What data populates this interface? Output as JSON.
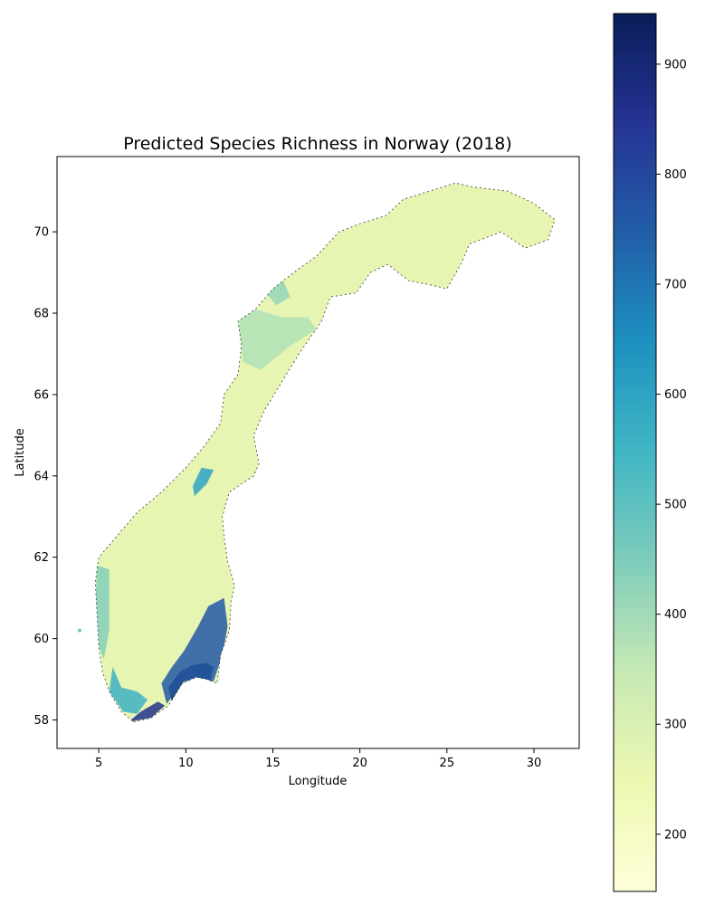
{
  "chart_data": {
    "type": "map",
    "title": "Predicted Species Richness in Norway (2018)",
    "xlabel": "Longitude",
    "ylabel": "Latitude",
    "xlim": [
      2.6,
      32.6
    ],
    "ylim": [
      57.3,
      71.85
    ],
    "x_ticks": [
      5,
      10,
      15,
      20,
      25,
      30
    ],
    "y_ticks": [
      58,
      60,
      62,
      64,
      66,
      68,
      70
    ],
    "colorbar": {
      "colormap": "YlGnBu",
      "range": [
        148,
        946
      ],
      "ticks": [
        200,
        300,
        400,
        500,
        600,
        700,
        800,
        900
      ],
      "stops": [
        "#ffffd9",
        "#edf8b1",
        "#c7e9b4",
        "#7fcdbb",
        "#41b6c4",
        "#1d91c0",
        "#225ea8",
        "#253494",
        "#081d58"
      ]
    },
    "outline": [
      [
        7.0,
        57.95
      ],
      [
        8.0,
        58.05
      ],
      [
        9.0,
        58.35
      ],
      [
        9.8,
        58.9
      ],
      [
        10.6,
        59.05
      ],
      [
        11.2,
        59.0
      ],
      [
        11.8,
        58.9
      ],
      [
        12.0,
        59.6
      ],
      [
        12.5,
        60.2
      ],
      [
        12.6,
        60.9
      ],
      [
        12.8,
        61.3
      ],
      [
        12.4,
        61.9
      ],
      [
        12.2,
        62.5
      ],
      [
        12.1,
        63.0
      ],
      [
        12.5,
        63.6
      ],
      [
        13.9,
        64.0
      ],
      [
        14.2,
        64.3
      ],
      [
        13.9,
        65.0
      ],
      [
        14.5,
        65.6
      ],
      [
        15.5,
        66.3
      ],
      [
        16.5,
        67.0
      ],
      [
        17.8,
        67.8
      ],
      [
        18.3,
        68.4
      ],
      [
        19.8,
        68.5
      ],
      [
        20.6,
        69.0
      ],
      [
        21.6,
        69.2
      ],
      [
        22.8,
        68.8
      ],
      [
        24.0,
        68.7
      ],
      [
        25.0,
        68.6
      ],
      [
        25.8,
        69.2
      ],
      [
        26.3,
        69.7
      ],
      [
        28.1,
        70.0
      ],
      [
        29.5,
        69.6
      ],
      [
        30.8,
        69.8
      ],
      [
        31.2,
        70.3
      ],
      [
        30.0,
        70.7
      ],
      [
        28.5,
        71.0
      ],
      [
        26.5,
        71.1
      ],
      [
        25.5,
        71.2
      ],
      [
        24.0,
        71.0
      ],
      [
        22.5,
        70.8
      ],
      [
        21.5,
        70.4
      ],
      [
        20.0,
        70.2
      ],
      [
        18.8,
        70.0
      ],
      [
        17.5,
        69.4
      ],
      [
        16.2,
        69.0
      ],
      [
        15.0,
        68.6
      ],
      [
        14.0,
        68.1
      ],
      [
        13.0,
        67.8
      ],
      [
        13.2,
        67.2
      ],
      [
        13.0,
        66.5
      ],
      [
        12.2,
        66.0
      ],
      [
        12.0,
        65.3
      ],
      [
        11.0,
        64.7
      ],
      [
        10.0,
        64.2
      ],
      [
        8.6,
        63.6
      ],
      [
        7.2,
        63.1
      ],
      [
        6.2,
        62.6
      ],
      [
        5.0,
        62.0
      ],
      [
        4.8,
        61.4
      ],
      [
        4.9,
        60.6
      ],
      [
        5.0,
        59.8
      ],
      [
        5.2,
        59.2
      ],
      [
        5.6,
        58.7
      ],
      [
        6.3,
        58.2
      ]
    ],
    "richness_bands": [
      {
        "value": 946,
        "path": [
          [
            9.2,
            58.45
          ],
          [
            9.9,
            58.95
          ],
          [
            10.6,
            59.05
          ],
          [
            11.4,
            58.95
          ],
          [
            11.6,
            59.3
          ],
          [
            11.2,
            59.4
          ],
          [
            10.4,
            59.35
          ],
          [
            9.7,
            59.2
          ],
          [
            9.0,
            58.8
          ]
        ]
      },
      {
        "value": 760,
        "path": [
          [
            8.9,
            58.4
          ],
          [
            9.9,
            58.95
          ],
          [
            11.6,
            58.95
          ],
          [
            12.1,
            59.6
          ],
          [
            12.4,
            60.3
          ],
          [
            12.2,
            61.0
          ],
          [
            11.3,
            60.8
          ],
          [
            10.7,
            60.3
          ],
          [
            9.9,
            59.7
          ],
          [
            9.2,
            59.3
          ],
          [
            8.6,
            58.9
          ]
        ]
      },
      {
        "value": 860,
        "path": [
          [
            6.7,
            57.95
          ],
          [
            8.0,
            58.05
          ],
          [
            8.8,
            58.35
          ],
          [
            8.4,
            58.45
          ],
          [
            7.4,
            58.2
          ]
        ]
      },
      {
        "value": 560,
        "path": [
          [
            5.6,
            58.7
          ],
          [
            6.4,
            58.2
          ],
          [
            7.2,
            58.15
          ],
          [
            7.8,
            58.5
          ],
          [
            7.2,
            58.7
          ],
          [
            6.3,
            58.8
          ],
          [
            5.8,
            59.3
          ]
        ]
      },
      {
        "value": 600,
        "path": [
          [
            10.9,
            64.2
          ],
          [
            11.6,
            64.15
          ],
          [
            11.2,
            63.8
          ],
          [
            10.5,
            63.5
          ],
          [
            10.4,
            63.75
          ]
        ]
      },
      {
        "value": 440,
        "path": [
          [
            4.9,
            61.8
          ],
          [
            5.6,
            61.7
          ],
          [
            5.6,
            60.2
          ],
          [
            5.3,
            59.5
          ],
          [
            5.0,
            59.8
          ],
          [
            4.8,
            60.8
          ]
        ]
      },
      {
        "value": 420,
        "path": [
          [
            14.6,
            68.9
          ],
          [
            15.5,
            68.9
          ],
          [
            16.0,
            68.4
          ],
          [
            15.2,
            68.2
          ],
          [
            14.6,
            68.5
          ]
        ]
      },
      {
        "value": 380,
        "path": [
          [
            13.0,
            67.8
          ],
          [
            14.0,
            68.1
          ],
          [
            15.5,
            67.9
          ],
          [
            17.0,
            67.9
          ],
          [
            17.5,
            67.6
          ],
          [
            16.0,
            67.2
          ],
          [
            14.3,
            66.6
          ],
          [
            13.3,
            66.8
          ]
        ]
      }
    ],
    "outlier_points": [
      {
        "lon": 3.9,
        "lat": 60.2,
        "value": 470
      }
    ]
  }
}
